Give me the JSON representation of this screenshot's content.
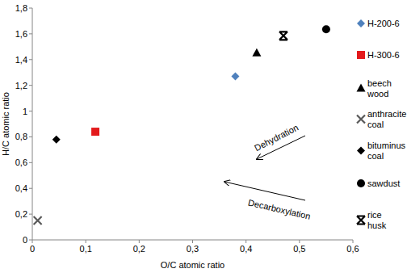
{
  "chart_data": {
    "type": "scatter",
    "x_label": "O/C atomic ratio",
    "y_label": "H/C atomic ratio",
    "xlim": [
      0,
      0.6
    ],
    "ylim": [
      0,
      1.8
    ],
    "xticks": [
      0,
      {
        "value": 0.1,
        "label": "0,1"
      },
      {
        "value": 0.2,
        "label": "0,2"
      },
      {
        "value": 0.3,
        "label": "0,3"
      },
      {
        "value": 0.4,
        "label": "0,4"
      },
      {
        "value": 0.5,
        "label": "0,5"
      },
      {
        "value": 0.6,
        "label": "0,6"
      }
    ],
    "yticks": [
      0,
      {
        "value": 0.2,
        "label": "0,2"
      },
      {
        "value": 0.4,
        "label": "0,4"
      },
      {
        "value": 0.6,
        "label": "0,6"
      },
      {
        "value": 0.8,
        "label": "0,8"
      },
      1,
      {
        "value": 1.2,
        "label": "1,2"
      },
      {
        "value": 1.4,
        "label": "1,4"
      },
      {
        "value": 1.6,
        "label": "1,6"
      },
      {
        "value": 1.8,
        "label": "1,8"
      }
    ],
    "grid": false,
    "legend": "right",
    "annotations": [
      "Dehydration",
      "Decarboxylation"
    ],
    "series": [
      {
        "name": "H-200-6",
        "color": "#4f81bd",
        "marker": "diamond",
        "x": [
          0.38
        ],
        "values": [
          1.27
        ]
      },
      {
        "name": "H-300-6",
        "color": "#e31a1c",
        "marker": "square",
        "x": [
          0.118
        ],
        "values": [
          0.84
        ]
      },
      {
        "name": "beech wood",
        "color": "#000000",
        "marker": "triangle",
        "x": [
          0.42
        ],
        "values": [
          1.45
        ]
      },
      {
        "name": "anthracite coal",
        "color": "#595959",
        "marker": "x",
        "x": [
          0.01
        ],
        "values": [
          0.15
        ]
      },
      {
        "name": "bituminus coal",
        "color": "#000000",
        "marker": "diamond",
        "x": [
          0.045
        ],
        "values": [
          0.78
        ]
      },
      {
        "name": "sawdust",
        "color": "#000000",
        "marker": "circle",
        "x": [
          0.55
        ],
        "values": [
          1.635
        ]
      },
      {
        "name": "rice husk",
        "color": "#000000",
        "marker": "asterisk",
        "x": [
          0.47
        ],
        "values": [
          1.585
        ]
      }
    ]
  }
}
